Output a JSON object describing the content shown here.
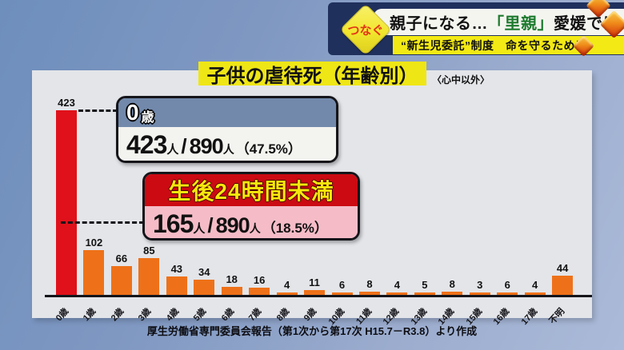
{
  "header": {
    "badge": "つなぐ",
    "headline_pre": "親子になる…",
    "headline_highlight": "「里親」",
    "headline_post": "愛媛では",
    "subtitle": "“新生児委託”制度　命を守るために"
  },
  "chart": {
    "title": "子供の虐待死（年齢別）",
    "note": "〈心中以外〉",
    "source": "厚生労働省専門委員会報告（第1次から第17次 H15.7－R3.8）より作成"
  },
  "callouts": {
    "age0": {
      "num": "0",
      "unit": "歳",
      "value": "423",
      "person1": "人",
      "slash": "/",
      "total": "890",
      "person2": "人",
      "pct": "（47.5%）"
    },
    "h24": {
      "label": "生後24時間未満",
      "value": "165",
      "person1": "人",
      "slash": "/",
      "total": "890",
      "person2": "人",
      "pct": "（18.5%）"
    }
  },
  "colors": {
    "highlight_text_green": "#1d7a2e",
    "banner_navy": "#20305d",
    "banner_yellow": "#f3ea15",
    "title_yellow": "#efe616",
    "panel_gray": "#e3e5e9",
    "callout1_header_blue": "#7289ab",
    "callout2_header_red": "#cb0a12",
    "callout2_body_pink": "#f5bcc7"
  },
  "chart_data": {
    "type": "bar",
    "title": "子供の虐待死（年齢別）",
    "subtitle": "〈心中以外〉",
    "categories": [
      "0歳",
      "1歳",
      "2歳",
      "3歳",
      "4歳",
      "5歳",
      "6歳",
      "7歳",
      "8歳",
      "9歳",
      "10歳",
      "11歳",
      "12歳",
      "13歳",
      "14歳",
      "15歳",
      "16歳",
      "17歳",
      "不明"
    ],
    "values": [
      423,
      102,
      66,
      85,
      43,
      34,
      18,
      16,
      4,
      11,
      6,
      8,
      4,
      5,
      8,
      3,
      6,
      4,
      44
    ],
    "total": 890,
    "highlight_index": 0,
    "highlight_color": "#e0111a",
    "bar_color": "#ee7119",
    "ylim": [
      0,
      440
    ],
    "grid": false,
    "legend": false,
    "annotations": [
      {
        "label": "0歳",
        "text": "423人/890人（47.5%）"
      },
      {
        "label": "生後24時間未満",
        "text": "165人/890人（18.5%）"
      }
    ],
    "xlabel": "",
    "ylabel": ""
  }
}
